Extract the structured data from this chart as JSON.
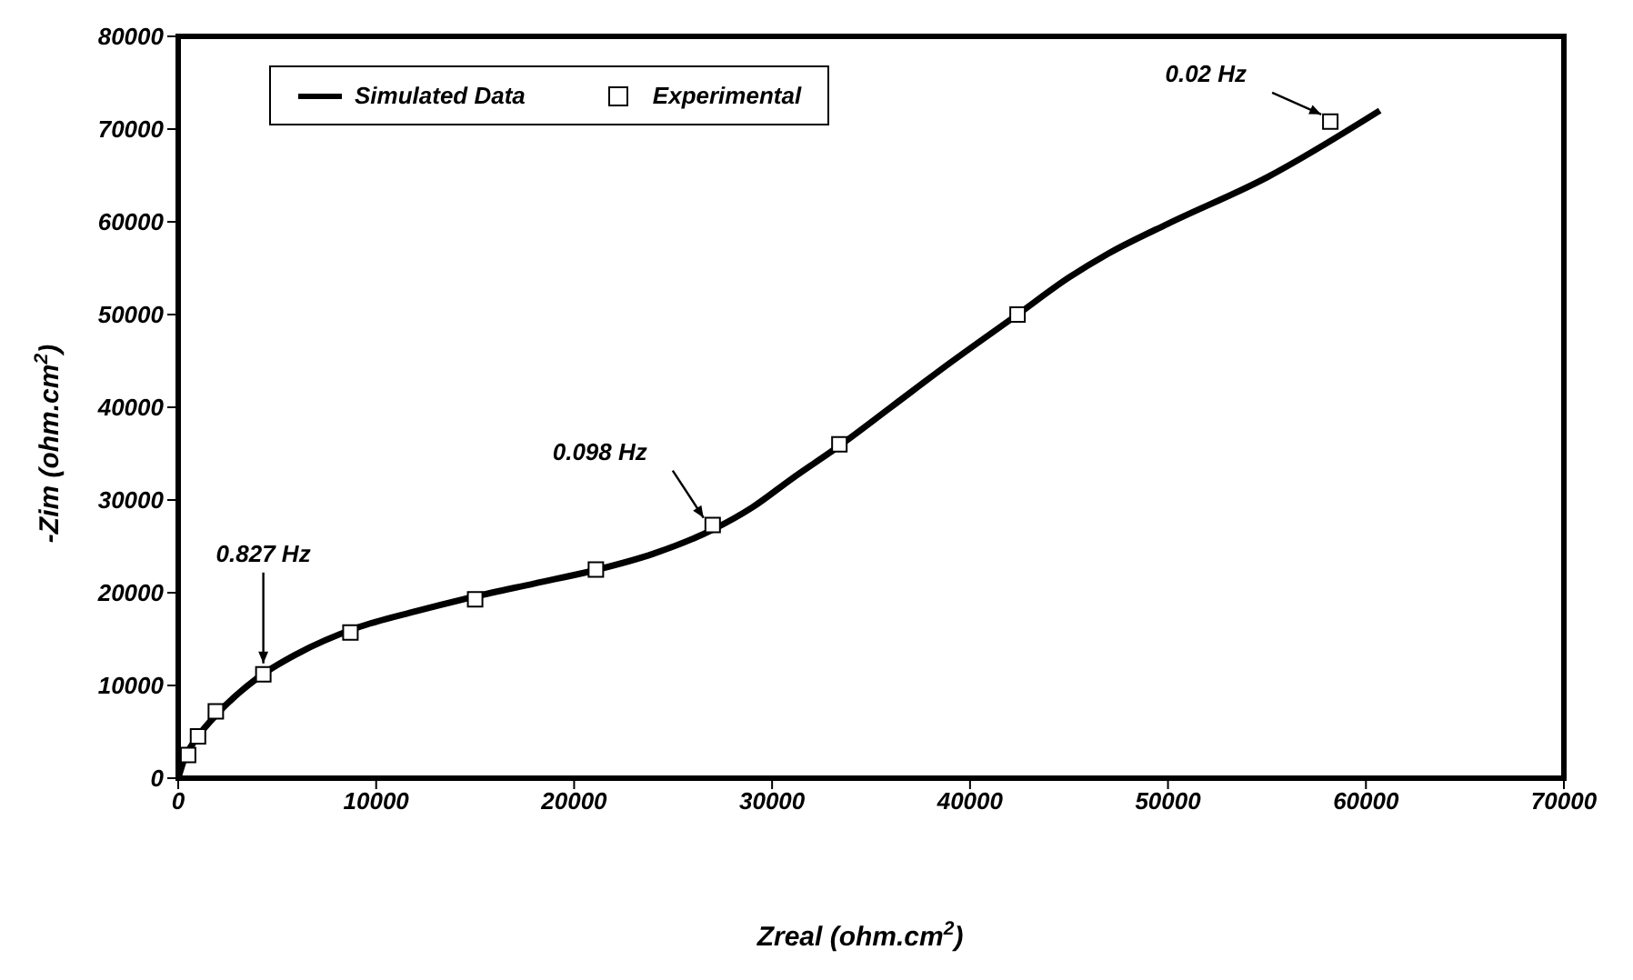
{
  "chart_data": {
    "type": "line",
    "xlabel": "Zreal (ohm.cm$^{2}$)",
    "ylabel": "-Zim (ohm.cm$^{2}$)",
    "xlim": [
      0,
      70000
    ],
    "xticks": [
      0,
      10000,
      20000,
      30000,
      40000,
      50000,
      60000,
      70000
    ],
    "ylim": [
      0,
      80000
    ],
    "yticks": [
      0,
      10000,
      20000,
      30000,
      40000,
      50000,
      60000,
      70000,
      80000
    ],
    "grid": false,
    "legend": "top left",
    "series": [
      {
        "name": "Simulated Data",
        "color": "#000000",
        "marker": "none",
        "line_style": "solid",
        "x": [
          0,
          300,
          1000,
          2000,
          4000,
          6000,
          9000,
          12000,
          15000,
          18000,
          21000,
          24000,
          27000,
          29000,
          31000,
          33500,
          36000,
          39000,
          42400,
          45000,
          47000,
          50000,
          55000,
          60700
        ],
        "values": [
          0,
          2000,
          4500,
          7000,
          10800,
          13400,
          16200,
          18000,
          19600,
          21000,
          22400,
          24200,
          26800,
          29200,
          32300,
          36000,
          40000,
          44800,
          50000,
          54000,
          56600,
          59800,
          64800,
          72000
        ]
      },
      {
        "name": "Experimental",
        "type": "scatter",
        "color": "#000000",
        "marker": "square",
        "x": [
          500,
          1000,
          1900,
          4300,
          8700,
          15000,
          21100,
          27000,
          33400,
          42400,
          58200
        ],
        "values": [
          2500,
          4500,
          7200,
          11200,
          15700,
          19300,
          22500,
          27300,
          36000,
          50000,
          70800
        ]
      }
    ],
    "annotations": [
      {
        "text": "0.827 Hz",
        "x": 4300,
        "y": 11200
      },
      {
        "text": "0.098 Hz",
        "x": 27000,
        "y": 27300
      },
      {
        "text": "0.02 Hz",
        "x": 58200,
        "y": 70800
      }
    ]
  }
}
